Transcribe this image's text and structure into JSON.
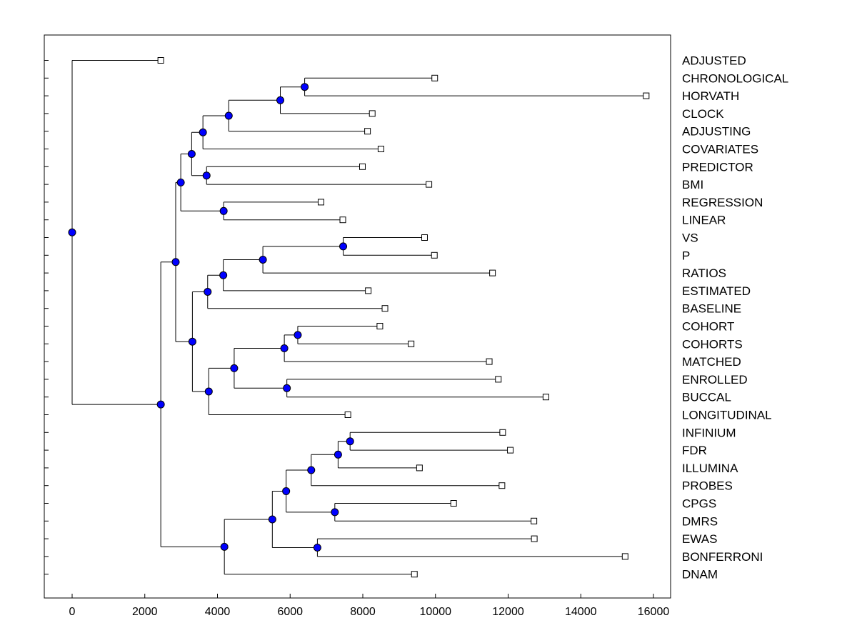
{
  "chart_data": {
    "type": "dendrogram",
    "orientation": "horizontal",
    "title": "",
    "xlabel": "",
    "ylabel": "",
    "xlim": [
      -800,
      16600
    ],
    "xticks": [
      0,
      2000,
      4000,
      6000,
      8000,
      10000,
      12000,
      14000,
      16000
    ],
    "xtick_labels": [
      "0",
      "2000",
      "4000",
      "6000",
      "8000",
      "10000",
      "12000",
      "14000",
      "16000"
    ],
    "node_color": "#0000ff",
    "line_color": "#000000",
    "leaves": [
      {
        "label": "ADJUSTED",
        "x": 2440
      },
      {
        "label": "CHRONOLOGICAL",
        "x": 9980
      },
      {
        "label": "HORVATH",
        "x": 15800
      },
      {
        "label": "CLOCK",
        "x": 8260
      },
      {
        "label": "ADJUSTING",
        "x": 8130
      },
      {
        "label": "COVARIATES",
        "x": 8500
      },
      {
        "label": "PREDICTOR",
        "x": 7990
      },
      {
        "label": "BMI",
        "x": 9820
      },
      {
        "label": "REGRESSION",
        "x": 6850
      },
      {
        "label": "LINEAR",
        "x": 7450
      },
      {
        "label": "VS",
        "x": 9700
      },
      {
        "label": "P",
        "x": 9970
      },
      {
        "label": "RATIOS",
        "x": 11570
      },
      {
        "label": "ESTIMATED",
        "x": 8150
      },
      {
        "label": "BASELINE",
        "x": 8610
      },
      {
        "label": "COHORT",
        "x": 8470
      },
      {
        "label": "COHORTS",
        "x": 9330
      },
      {
        "label": "MATCHED",
        "x": 11480
      },
      {
        "label": "ENROLLED",
        "x": 11730
      },
      {
        "label": "BUCCAL",
        "x": 13040
      },
      {
        "label": "LONGITUDINAL",
        "x": 7590
      },
      {
        "label": "INFINIUM",
        "x": 11850
      },
      {
        "label": "FDR",
        "x": 12060
      },
      {
        "label": "ILLUMINA",
        "x": 9560
      },
      {
        "label": "PROBES",
        "x": 11830
      },
      {
        "label": "CPGS",
        "x": 10500
      },
      {
        "label": "DMRS",
        "x": 12710
      },
      {
        "label": "EWAS",
        "x": 12720
      },
      {
        "label": "BONFERRONI",
        "x": 15220
      },
      {
        "label": "DNAM",
        "x": 9420
      }
    ],
    "merges": [
      {
        "x": 6400,
        "children": [
          "L1",
          "L2"
        ]
      },
      {
        "x": 5730,
        "children": [
          "M0",
          "L3"
        ]
      },
      {
        "x": 4310,
        "children": [
          "M1",
          "L4"
        ]
      },
      {
        "x": 3600,
        "children": [
          "M2",
          "L5"
        ]
      },
      {
        "x": 3700,
        "children": [
          "L6",
          "L7"
        ]
      },
      {
        "x": 3290,
        "children": [
          "M3",
          "M4"
        ]
      },
      {
        "x": 4170,
        "children": [
          "L8",
          "L9"
        ]
      },
      {
        "x": 2990,
        "children": [
          "M5",
          "M6"
        ]
      },
      {
        "x": 7460,
        "children": [
          "L10",
          "L11"
        ]
      },
      {
        "x": 5250,
        "children": [
          "M8",
          "L12"
        ]
      },
      {
        "x": 4160,
        "children": [
          "M9",
          "L13"
        ]
      },
      {
        "x": 3730,
        "children": [
          "M10",
          "L14"
        ]
      },
      {
        "x": 6210,
        "children": [
          "L15",
          "L16"
        ]
      },
      {
        "x": 5840,
        "children": [
          "M12",
          "L17"
        ]
      },
      {
        "x": 5910,
        "children": [
          "L18",
          "L19"
        ]
      },
      {
        "x": 4460,
        "children": [
          "M13",
          "M14"
        ]
      },
      {
        "x": 3760,
        "children": [
          "M15",
          "L20"
        ]
      },
      {
        "x": 3310,
        "children": [
          "M11",
          "M16"
        ]
      },
      {
        "x": 2850,
        "children": [
          "M7",
          "M17"
        ]
      },
      {
        "x": 7650,
        "children": [
          "L21",
          "L22"
        ]
      },
      {
        "x": 7320,
        "children": [
          "M19",
          "L23"
        ]
      },
      {
        "x": 6580,
        "children": [
          "M20",
          "L24"
        ]
      },
      {
        "x": 7230,
        "children": [
          "L25",
          "L26"
        ]
      },
      {
        "x": 5890,
        "children": [
          "M21",
          "M22"
        ]
      },
      {
        "x": 6750,
        "children": [
          "L27",
          "L28"
        ]
      },
      {
        "x": 5510,
        "children": [
          "M23",
          "M24"
        ]
      },
      {
        "x": 4190,
        "children": [
          "M25",
          "L29"
        ]
      },
      {
        "x": 2440,
        "children": [
          "M18",
          "M26"
        ]
      },
      {
        "x": 0,
        "children": [
          "L0",
          "M27"
        ]
      }
    ]
  }
}
